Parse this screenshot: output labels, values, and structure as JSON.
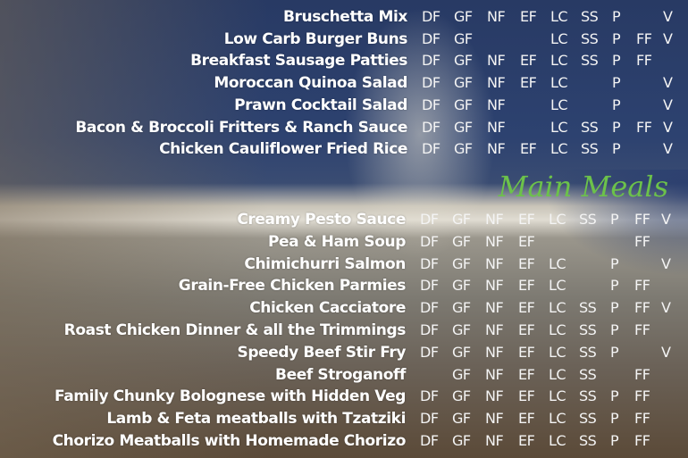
{
  "sections": [
    {
      "title": "",
      "items": [
        {
          "name": "Bruschetta Mix",
          "tags": [
            "DF",
            "GF",
            "NF",
            "EF",
            "LC",
            "SS",
            "P",
            "",
            "V"
          ]
        },
        {
          "name": "Low Carb Burger Buns",
          "tags": [
            "DF",
            "GF",
            "",
            "",
            "LC",
            "SS",
            "P",
            "FF",
            "V"
          ]
        },
        {
          "name": "Breakfast Sausage Patties",
          "tags": [
            "DF",
            "GF",
            "NF",
            "EF",
            "LC",
            "SS",
            "P",
            "FF",
            ""
          ]
        },
        {
          "name": "Moroccan Quinoa Salad",
          "tags": [
            "DF",
            "GF",
            "NF",
            "EF",
            "LC",
            "",
            "P",
            "",
            "V"
          ]
        },
        {
          "name": "Prawn Cocktail Salad",
          "tags": [
            "DF",
            "GF",
            "NF",
            "",
            "LC",
            "",
            "P",
            "",
            "V"
          ]
        },
        {
          "name": "Bacon & Broccoli Fritters & Ranch Sauce",
          "tags": [
            "DF",
            "GF",
            "NF",
            "",
            "LC",
            "SS",
            "P",
            "FF",
            "V"
          ]
        },
        {
          "name": "Chicken Cauliflower Fried Rice",
          "tags": [
            "DF",
            "GF",
            "NF",
            "EF",
            "LC",
            "SS",
            "P",
            "",
            "V"
          ]
        }
      ]
    },
    {
      "title": "Main Meals",
      "items": [
        {
          "name": "Creamy Pesto Sauce",
          "tags": [
            "DF",
            "GF",
            "NF",
            "EF",
            "LC",
            "SS",
            "P",
            "FF",
            "V"
          ]
        },
        {
          "name": "Pea & Ham Soup",
          "tags": [
            "DF",
            "GF",
            "NF",
            "EF",
            "",
            "",
            "",
            "FF",
            ""
          ]
        },
        {
          "name": "Chimichurri Salmon",
          "tags": [
            "DF",
            "GF",
            "NF",
            "EF",
            "LC",
            "",
            "P",
            "",
            "V"
          ]
        },
        {
          "name": "Grain-Free Chicken Parmies",
          "tags": [
            "DF",
            "GF",
            "NF",
            "EF",
            "LC",
            "",
            "P",
            "FF",
            ""
          ]
        },
        {
          "name": "Chicken Cacciatore",
          "tags": [
            "DF",
            "GF",
            "NF",
            "EF",
            "LC",
            "SS",
            "P",
            "FF",
            "V"
          ]
        },
        {
          "name": "Roast Chicken Dinner & all the Trimmings",
          "tags": [
            "DF",
            "GF",
            "NF",
            "EF",
            "LC",
            "SS",
            "P",
            "FF",
            ""
          ]
        },
        {
          "name": "Speedy Beef Stir Fry",
          "tags": [
            "DF",
            "GF",
            "NF",
            "EF",
            "LC",
            "SS",
            "P",
            "",
            "V"
          ]
        },
        {
          "name": "Beef Stroganoff",
          "tags": [
            "",
            "GF",
            "NF",
            "EF",
            "LC",
            "SS",
            "",
            "FF",
            ""
          ]
        },
        {
          "name": "Family Chunky Bolognese with Hidden Veg",
          "tags": [
            "DF",
            "GF",
            "NF",
            "EF",
            "LC",
            "SS",
            "P",
            "FF",
            ""
          ]
        },
        {
          "name": "Lamb & Feta meatballs with Tzatziki",
          "tags": [
            "DF",
            "GF",
            "NF",
            "EF",
            "LC",
            "SS",
            "P",
            "FF",
            ""
          ]
        },
        {
          "name": "Chorizo Meatballs with Homemade Chorizo",
          "tags": [
            "DF",
            "GF",
            "NF",
            "EF",
            "LC",
            "SS",
            "P",
            "FF",
            ""
          ]
        }
      ]
    }
  ],
  "colors": {
    "section_title": "#6cc24a",
    "text": "#ffffff"
  }
}
